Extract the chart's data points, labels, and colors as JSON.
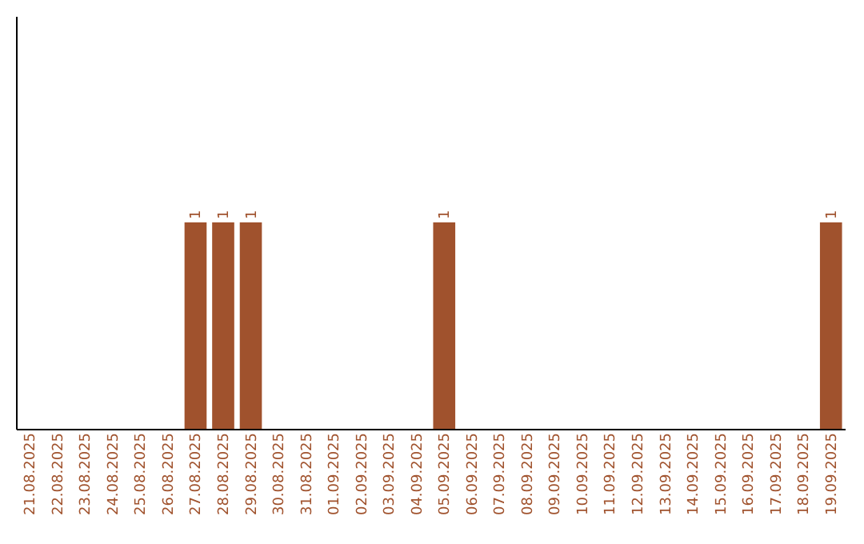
{
  "chart_data": {
    "type": "bar",
    "categories": [
      "21.08.2025",
      "22.08.2025",
      "23.08.2025",
      "24.08.2025",
      "25.08.2025",
      "26.08.2025",
      "27.08.2025",
      "28.08.2025",
      "29.08.2025",
      "30.08.2025",
      "31.08.2025",
      "01.09.2025",
      "02.09.2025",
      "03.09.2025",
      "04.09.2025",
      "05.09.2025",
      "06.09.2025",
      "07.09.2025",
      "08.09.2025",
      "09.09.2025",
      "10.09.2025",
      "11.09.2025",
      "12.09.2025",
      "13.09.2025",
      "14.09.2025",
      "15.09.2025",
      "16.09.2025",
      "17.09.2025",
      "18.09.2025",
      "19.09.2025"
    ],
    "values": [
      0,
      0,
      0,
      0,
      0,
      0,
      1,
      1,
      1,
      0,
      0,
      0,
      0,
      0,
      0,
      1,
      0,
      0,
      0,
      0,
      0,
      0,
      0,
      0,
      0,
      0,
      0,
      0,
      0,
      1
    ],
    "value_labels": [
      null,
      null,
      null,
      null,
      null,
      null,
      "1",
      "1",
      "1",
      null,
      null,
      null,
      null,
      null,
      null,
      "1",
      null,
      null,
      null,
      null,
      null,
      null,
      null,
      null,
      null,
      null,
      null,
      null,
      null,
      "1"
    ],
    "color": "#a0522d",
    "ylim": [
      0,
      2
    ],
    "tick_labels": "x",
    "grid": false
  }
}
